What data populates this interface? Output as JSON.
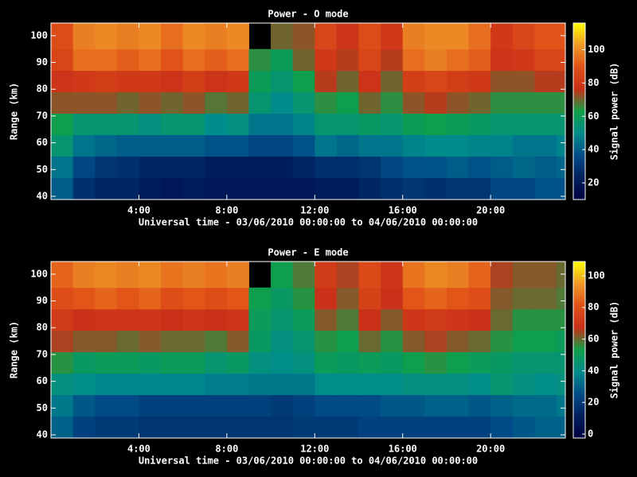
{
  "chart_data": [
    {
      "type": "heatmap",
      "title": "Power - O mode",
      "x_label": "Universal time - 03/06/2010 00:00:00 to 04/06/2010 00:00:00",
      "y_label": "Range (km)",
      "colorbar_label": "Signal power (dB)",
      "x_bins": [
        0,
        1,
        2,
        3,
        4,
        5,
        6,
        7,
        8,
        9,
        10,
        11,
        12,
        13,
        14,
        15,
        16,
        17,
        18,
        19,
        20,
        21,
        22,
        23,
        23.4
      ],
      "y_bins": [
        38.8,
        47,
        55,
        63,
        71,
        79,
        87,
        95,
        104.7
      ],
      "z": [
        [
          40,
          28,
          25,
          25,
          22,
          20,
          22,
          20,
          20,
          20,
          20,
          20,
          22,
          22,
          25,
          28,
          30,
          28,
          30,
          30,
          35,
          35,
          38,
          38
        ],
        [
          45,
          35,
          30,
          28,
          25,
          25,
          25,
          22,
          22,
          22,
          22,
          25,
          28,
          28,
          30,
          35,
          38,
          38,
          40,
          38,
          40,
          42,
          40,
          42
        ],
        [
          55,
          45,
          42,
          40,
          40,
          40,
          40,
          38,
          38,
          35,
          35,
          38,
          45,
          42,
          45,
          45,
          48,
          50,
          50,
          48,
          48,
          45,
          45,
          48
        ],
        [
          62,
          55,
          55,
          55,
          52,
          55,
          55,
          50,
          52,
          45,
          45,
          48,
          55,
          55,
          58,
          55,
          60,
          62,
          60,
          58,
          55,
          55,
          55,
          55
        ],
        [
          72,
          72,
          72,
          70,
          72,
          70,
          72,
          68,
          70,
          55,
          50,
          55,
          65,
          62,
          70,
          65,
          72,
          75,
          72,
          70,
          65,
          65,
          65,
          65
        ],
        [
          78,
          80,
          82,
          80,
          80,
          78,
          82,
          78,
          80,
          60,
          55,
          62,
          75,
          70,
          78,
          70,
          82,
          85,
          82,
          80,
          72,
          72,
          75,
          75
        ],
        [
          85,
          95,
          95,
          92,
          95,
          90,
          95,
          92,
          95,
          65,
          60,
          70,
          80,
          75,
          85,
          75,
          95,
          98,
          95,
          92,
          78,
          80,
          85,
          85
        ],
        [
          88,
          98,
          100,
          98,
          100,
          95,
          100,
          98,
          100,
          null,
          70,
          72,
          85,
          78,
          88,
          80,
          98,
          100,
          100,
          95,
          80,
          85,
          90,
          90
        ]
      ],
      "xlim": [
        0,
        23.4
      ],
      "ylim": [
        38.8,
        104.7
      ],
      "xticks": [
        {
          "value": 4,
          "label": "4:00"
        },
        {
          "value": 8,
          "label": "8:00"
        },
        {
          "value": 12,
          "label": "12:00"
        },
        {
          "value": 16,
          "label": "16:00"
        },
        {
          "value": 20,
          "label": "20:00"
        }
      ],
      "yticks": [
        40,
        50,
        60,
        70,
        80,
        90,
        100
      ],
      "zlim": [
        10,
        116
      ],
      "zticks": [
        20,
        40,
        60,
        80,
        100
      ],
      "colormap": [
        "#000040",
        "#00205e",
        "#004c88",
        "#008c8c",
        "#10a048",
        "#c83018",
        "#e05018",
        "#f09828",
        "#ffff00"
      ]
    },
    {
      "type": "heatmap",
      "title": "Power - E mode",
      "x_label": "Universal time - 03/06/2010 00:00:00 to 04/06/2010 00:00:00",
      "y_label": "Range (km)",
      "colorbar_label": "Signal power (dB)",
      "x_bins": [
        0,
        1,
        2,
        3,
        4,
        5,
        6,
        7,
        8,
        9,
        10,
        11,
        12,
        13,
        14,
        15,
        16,
        17,
        18,
        19,
        20,
        21,
        22,
        23,
        23.4
      ],
      "y_bins": [
        38.8,
        47,
        55,
        63,
        71,
        79,
        87,
        95,
        104.7
      ],
      "z": [
        [
          30,
          22,
          20,
          20,
          18,
          18,
          18,
          18,
          18,
          18,
          18,
          20,
          20,
          20,
          22,
          22,
          22,
          22,
          22,
          22,
          25,
          28,
          30,
          30
        ],
        [
          35,
          28,
          25,
          25,
          22,
          22,
          22,
          22,
          22,
          22,
          20,
          22,
          25,
          25,
          25,
          28,
          28,
          30,
          30,
          28,
          30,
          32,
          32,
          35
        ],
        [
          42,
          40,
          38,
          38,
          38,
          38,
          38,
          36,
          36,
          35,
          35,
          35,
          40,
          40,
          40,
          40,
          42,
          42,
          42,
          40,
          45,
          42,
          40,
          42
        ],
        [
          55,
          48,
          50,
          50,
          48,
          50,
          50,
          45,
          48,
          42,
          40,
          42,
          50,
          48,
          50,
          48,
          52,
          55,
          52,
          50,
          48,
          45,
          45,
          45
        ],
        [
          65,
          62,
          62,
          60,
          62,
          60,
          60,
          58,
          62,
          48,
          42,
          45,
          55,
          52,
          60,
          55,
          62,
          65,
          62,
          60,
          55,
          52,
          52,
          50
        ],
        [
          72,
          68,
          70,
          70,
          70,
          68,
          70,
          68,
          70,
          50,
          45,
          50,
          62,
          58,
          68,
          62,
          70,
          72,
          70,
          68,
          60,
          55,
          55,
          55
        ],
        [
          80,
          82,
          85,
          82,
          85,
          80,
          82,
          80,
          82,
          52,
          48,
          55,
          68,
          62,
          75,
          68,
          82,
          85,
          82,
          80,
          62,
          60,
          60,
          58
        ],
        [
          85,
          90,
          92,
          90,
          92,
          88,
          90,
          88,
          90,
          null,
          52,
          58,
          72,
          65,
          78,
          70,
          88,
          92,
          90,
          85,
          65,
          62,
          62,
          60
        ]
      ],
      "xlim": [
        0,
        23.4
      ],
      "ylim": [
        38.8,
        104.7
      ],
      "xticks": [
        {
          "value": 4,
          "label": "4:00"
        },
        {
          "value": 8,
          "label": "8:00"
        },
        {
          "value": 12,
          "label": "12:00"
        },
        {
          "value": 16,
          "label": "16:00"
        },
        {
          "value": 20,
          "label": "20:00"
        }
      ],
      "yticks": [
        40,
        50,
        60,
        70,
        80,
        90,
        100
      ],
      "zlim": [
        -2.5,
        109
      ],
      "zticks": [
        0,
        20,
        40,
        60,
        80,
        100
      ],
      "colormap": [
        "#000040",
        "#00205e",
        "#004c88",
        "#008c8c",
        "#10a048",
        "#c83018",
        "#e05018",
        "#f09828",
        "#ffff00"
      ]
    }
  ]
}
